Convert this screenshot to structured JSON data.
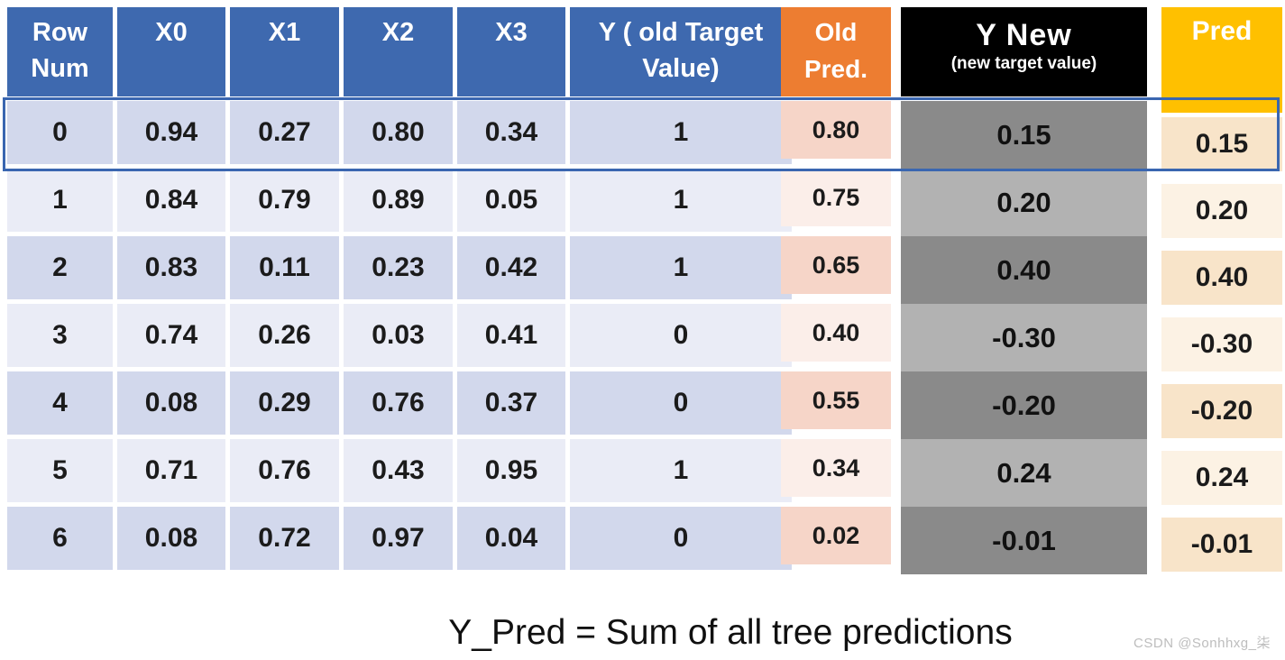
{
  "main_table": {
    "header_cells": [
      "Row Num",
      "X0",
      "X1",
      "X2",
      "X3",
      "Y ( old Target Value)"
    ],
    "rows": [
      [
        "0",
        "0.94",
        "0.27",
        "0.80",
        "0.34",
        "1"
      ],
      [
        "1",
        "0.84",
        "0.79",
        "0.89",
        "0.05",
        "1"
      ],
      [
        "2",
        "0.83",
        "0.11",
        "0.23",
        "0.42",
        "1"
      ],
      [
        "3",
        "0.74",
        "0.26",
        "0.03",
        "0.41",
        "0"
      ],
      [
        "4",
        "0.08",
        "0.29",
        "0.76",
        "0.37",
        "0"
      ],
      [
        "5",
        "0.71",
        "0.76",
        "0.43",
        "0.95",
        "1"
      ],
      [
        "6",
        "0.08",
        "0.72",
        "0.97",
        "0.04",
        "0"
      ]
    ]
  },
  "old_pred": {
    "header": "Old Pred.",
    "values": [
      "0.80",
      "0.75",
      "0.65",
      "0.40",
      "0.55",
      "0.34",
      "0.02"
    ]
  },
  "y_new": {
    "title": "Y New",
    "subtitle": "(new target value)",
    "values": [
      "0.15",
      "0.20",
      "0.40",
      "-0.30",
      "-0.20",
      "0.24",
      "-0.01"
    ]
  },
  "pred": {
    "header": "Pred",
    "values": [
      "0.15",
      "0.20",
      "0.40",
      "-0.30",
      "-0.20",
      "0.24",
      "-0.01"
    ]
  },
  "caption": "Y_Pred = Sum of all tree predictions",
  "watermark": "CSDN @Sonhhxg_柒",
  "colors": {
    "header_blue": "#3E69AF",
    "header_orange": "#ED7D31",
    "header_black": "#000000",
    "header_gold": "#FFC000",
    "row_band_dark": "#D2D8EC",
    "row_band_light": "#EAECF6",
    "old_pred_dark": "#F6D5C8",
    "old_pred_light": "#FBEEE9",
    "y_new_dark": "#8A8A8A",
    "y_new_light": "#B2B2B2",
    "pred_dark": "#F8E4C9",
    "pred_light": "#FCF2E4",
    "highlight_border": "#3A66B0"
  }
}
